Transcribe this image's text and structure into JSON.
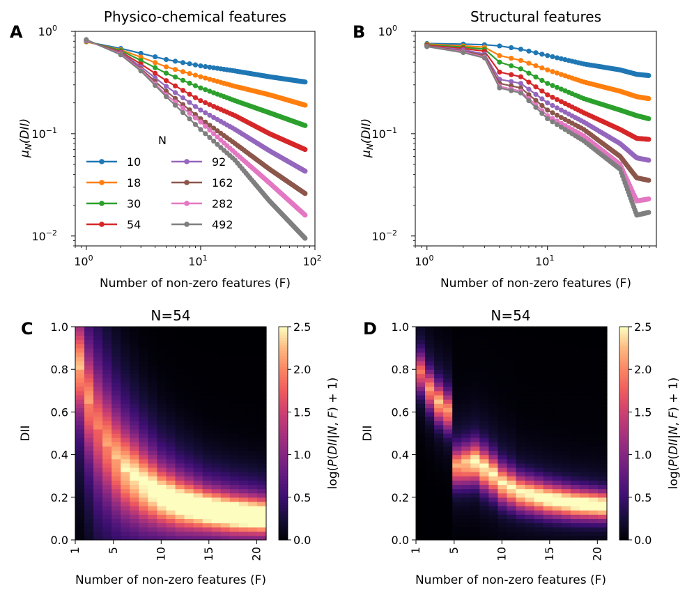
{
  "chart_data": [
    {
      "panel": "A",
      "type": "line",
      "title": "Physico-chemical features",
      "xlabel": "Number of non-zero features (F)",
      "ylabel": "μN(DII)",
      "xscale": "log",
      "yscale": "log",
      "xlim": [
        0.8,
        100
      ],
      "ylim": [
        0.008,
        1.0
      ],
      "xticks": [
        {
          "value": 1,
          "label": "10",
          "exp": "0"
        },
        {
          "value": 10,
          "label": "10",
          "exp": "1"
        },
        {
          "value": 100,
          "label": "10",
          "exp": "2"
        }
      ],
      "yticks": [
        {
          "value": 0.01,
          "label": "10",
          "exp": "−2"
        },
        {
          "value": 0.1,
          "label": "10",
          "exp": "−1"
        },
        {
          "value": 1,
          "label": "10",
          "exp": "0"
        }
      ],
      "legend": {
        "title": "N",
        "location": "lower-left"
      },
      "x_max": 82,
      "series": [
        {
          "name": "10",
          "color": "#1f77b4",
          "knots": [
            [
              1,
              0.79
            ],
            [
              2,
              0.68
            ],
            [
              3,
              0.61
            ],
            [
              5,
              0.53
            ],
            [
              10,
              0.46
            ],
            [
              20,
              0.41
            ],
            [
              40,
              0.36
            ],
            [
              82,
              0.32
            ]
          ]
        },
        {
          "name": "18",
          "color": "#ff7f0e",
          "knots": [
            [
              1,
              0.79
            ],
            [
              2,
              0.66
            ],
            [
              3,
              0.56
            ],
            [
              5,
              0.45
            ],
            [
              10,
              0.36
            ],
            [
              20,
              0.29
            ],
            [
              40,
              0.24
            ],
            [
              82,
              0.19
            ]
          ]
        },
        {
          "name": "30",
          "color": "#2ca02c",
          "knots": [
            [
              1,
              0.8
            ],
            [
              2,
              0.65
            ],
            [
              3,
              0.52
            ],
            [
              5,
              0.39
            ],
            [
              10,
              0.28
            ],
            [
              20,
              0.21
            ],
            [
              40,
              0.16
            ],
            [
              82,
              0.12
            ]
          ]
        },
        {
          "name": "54",
          "color": "#d62728",
          "knots": [
            [
              1,
              0.81
            ],
            [
              2,
              0.63
            ],
            [
              3,
              0.48
            ],
            [
              5,
              0.33
            ],
            [
              10,
              0.21
            ],
            [
              20,
              0.15
            ],
            [
              40,
              0.1
            ],
            [
              82,
              0.07
            ]
          ]
        },
        {
          "name": "92",
          "color": "#9467bd",
          "knots": [
            [
              1,
              0.81
            ],
            [
              2,
              0.62
            ],
            [
              3,
              0.45
            ],
            [
              5,
              0.29
            ],
            [
              10,
              0.17
            ],
            [
              20,
              0.11
            ],
            [
              40,
              0.068
            ],
            [
              82,
              0.043
            ]
          ]
        },
        {
          "name": "162",
          "color": "#8c564b",
          "knots": [
            [
              1,
              0.82
            ],
            [
              2,
              0.61
            ],
            [
              3,
              0.43
            ],
            [
              5,
              0.26
            ],
            [
              10,
              0.14
            ],
            [
              20,
              0.08
            ],
            [
              40,
              0.045
            ],
            [
              82,
              0.026
            ]
          ]
        },
        {
          "name": "282",
          "color": "#e377c2",
          "knots": [
            [
              1,
              0.82
            ],
            [
              2,
              0.6
            ],
            [
              3,
              0.42
            ],
            [
              5,
              0.24
            ],
            [
              10,
              0.13
            ],
            [
              20,
              0.065
            ],
            [
              40,
              0.033
            ],
            [
              82,
              0.016
            ]
          ]
        },
        {
          "name": "492",
          "color": "#7f7f7f",
          "knots": [
            [
              1,
              0.83
            ],
            [
              2,
              0.59
            ],
            [
              3,
              0.41
            ],
            [
              5,
              0.23
            ],
            [
              10,
              0.11
            ],
            [
              20,
              0.055
            ],
            [
              40,
              0.022
            ],
            [
              82,
              0.0095
            ]
          ]
        }
      ]
    },
    {
      "panel": "B",
      "type": "line",
      "title": "Structural features",
      "xlabel": "Number of non-zero features (F)",
      "ylabel": "μN(DII)",
      "xscale": "log",
      "yscale": "log",
      "xlim": [
        0.8,
        80
      ],
      "ylim": [
        0.008,
        1.0
      ],
      "xticks": [
        {
          "value": 1,
          "label": "10",
          "exp": "0"
        },
        {
          "value": 10,
          "label": "10",
          "exp": "1"
        }
      ],
      "yticks": [
        {
          "value": 0.01,
          "label": "10",
          "exp": "−2"
        },
        {
          "value": 0.1,
          "label": "10",
          "exp": "−1"
        },
        {
          "value": 1,
          "label": "10",
          "exp": "0"
        }
      ],
      "x_max": 69,
      "series": [
        {
          "name": "10",
          "color": "#1f77b4",
          "knots": [
            [
              1,
              0.76
            ],
            [
              2,
              0.75
            ],
            [
              3,
              0.74
            ],
            [
              4,
              0.72
            ],
            [
              6,
              0.67
            ],
            [
              10,
              0.58
            ],
            [
              20,
              0.48
            ],
            [
              40,
              0.42
            ],
            [
              55,
              0.38
            ],
            [
              69,
              0.37
            ]
          ]
        },
        {
          "name": "18",
          "color": "#ff7f0e",
          "knots": [
            [
              1,
              0.75
            ],
            [
              2,
              0.72
            ],
            [
              3,
              0.7
            ],
            [
              4,
              0.58
            ],
            [
              6,
              0.52
            ],
            [
              10,
              0.42
            ],
            [
              20,
              0.32
            ],
            [
              40,
              0.26
            ],
            [
              55,
              0.23
            ],
            [
              69,
              0.22
            ]
          ]
        },
        {
          "name": "30",
          "color": "#2ca02c",
          "knots": [
            [
              1,
              0.74
            ],
            [
              2,
              0.7
            ],
            [
              3,
              0.67
            ],
            [
              4,
              0.5
            ],
            [
              6,
              0.43
            ],
            [
              10,
              0.31
            ],
            [
              20,
              0.22
            ],
            [
              40,
              0.17
            ],
            [
              55,
              0.15
            ],
            [
              69,
              0.14
            ]
          ]
        },
        {
          "name": "54",
          "color": "#d62728",
          "knots": [
            [
              1,
              0.73
            ],
            [
              2,
              0.68
            ],
            [
              3,
              0.64
            ],
            [
              4,
              0.4
            ],
            [
              6,
              0.36
            ],
            [
              10,
              0.24
            ],
            [
              20,
              0.16
            ],
            [
              40,
              0.11
            ],
            [
              55,
              0.09
            ],
            [
              69,
              0.088
            ]
          ]
        },
        {
          "name": "92",
          "color": "#9467bd",
          "knots": [
            [
              1,
              0.72
            ],
            [
              2,
              0.66
            ],
            [
              3,
              0.6
            ],
            [
              4,
              0.34
            ],
            [
              6,
              0.31
            ],
            [
              10,
              0.2
            ],
            [
              20,
              0.13
            ],
            [
              40,
              0.08
            ],
            [
              55,
              0.058
            ],
            [
              69,
              0.055
            ]
          ]
        },
        {
          "name": "162",
          "color": "#8c564b",
          "knots": [
            [
              1,
              0.72
            ],
            [
              2,
              0.64
            ],
            [
              3,
              0.58
            ],
            [
              4,
              0.31
            ],
            [
              6,
              0.28
            ],
            [
              10,
              0.17
            ],
            [
              20,
              0.11
            ],
            [
              40,
              0.06
            ],
            [
              55,
              0.037
            ],
            [
              69,
              0.035
            ]
          ]
        },
        {
          "name": "282",
          "color": "#e377c2",
          "knots": [
            [
              1,
              0.71
            ],
            [
              2,
              0.63
            ],
            [
              3,
              0.56
            ],
            [
              4,
              0.29
            ],
            [
              6,
              0.26
            ],
            [
              10,
              0.15
            ],
            [
              20,
              0.095
            ],
            [
              40,
              0.05
            ],
            [
              55,
              0.022
            ],
            [
              69,
              0.023
            ]
          ]
        },
        {
          "name": "492",
          "color": "#7f7f7f",
          "knots": [
            [
              1,
              0.71
            ],
            [
              2,
              0.62
            ],
            [
              3,
              0.55
            ],
            [
              4,
              0.28
            ],
            [
              6,
              0.25
            ],
            [
              10,
              0.14
            ],
            [
              20,
              0.085
            ],
            [
              40,
              0.045
            ],
            [
              55,
              0.016
            ],
            [
              69,
              0.017
            ]
          ]
        }
      ]
    },
    {
      "panel": "C",
      "type": "heatmap",
      "title": "N=54",
      "xlabel": "Number of non-zero features (F)",
      "ylabel": "DII",
      "xlim": [
        1,
        21
      ],
      "ylim": [
        0.0,
        1.0
      ],
      "xticks": [
        {
          "value": 1,
          "label": "1"
        },
        {
          "value": 5,
          "label": "5"
        },
        {
          "value": 10,
          "label": "10"
        },
        {
          "value": 15,
          "label": "15"
        },
        {
          "value": 20,
          "label": "20"
        }
      ],
      "yticks": [
        {
          "value": 0.0,
          "label": "0.0"
        },
        {
          "value": 0.2,
          "label": "0.2"
        },
        {
          "value": 0.4,
          "label": "0.4"
        },
        {
          "value": 0.6,
          "label": "0.6"
        },
        {
          "value": 0.8,
          "label": "0.8"
        },
        {
          "value": 1.0,
          "label": "1.0"
        }
      ],
      "colorbar": {
        "label": "log(P(DII|N, F) + 1)",
        "min": 0.0,
        "max": 2.5,
        "ticks": [
          "0.0",
          "0.5",
          "1.0",
          "1.5",
          "2.0",
          "2.5"
        ]
      },
      "ridge": [
        [
          1,
          0.8
        ],
        [
          2,
          0.64
        ],
        [
          3,
          0.52
        ],
        [
          4,
          0.44
        ],
        [
          5,
          0.37
        ],
        [
          6,
          0.32
        ],
        [
          8,
          0.25
        ],
        [
          10,
          0.2
        ],
        [
          12,
          0.17
        ],
        [
          15,
          0.14
        ],
        [
          18,
          0.12
        ],
        [
          21,
          0.11
        ]
      ],
      "width": [
        [
          1,
          0.14
        ],
        [
          3,
          0.16
        ],
        [
          6,
          0.13
        ],
        [
          10,
          0.09
        ],
        [
          15,
          0.065
        ],
        [
          21,
          0.055
        ]
      ],
      "peak": [
        [
          1,
          1.3
        ],
        [
          3,
          1.0
        ],
        [
          6,
          1.5
        ],
        [
          10,
          1.9
        ],
        [
          15,
          2.3
        ],
        [
          21,
          2.45
        ]
      ],
      "halo_scale": 0.85,
      "halo_amp": 0.9
    },
    {
      "panel": "D",
      "type": "heatmap",
      "title": "N=54",
      "xlabel": "Number of non-zero features (F)",
      "ylabel": "DII",
      "xlim": [
        1,
        21
      ],
      "ylim": [
        0.0,
        1.0
      ],
      "xticks": [
        {
          "value": 1,
          "label": "1"
        },
        {
          "value": 5,
          "label": "5"
        },
        {
          "value": 10,
          "label": "10"
        },
        {
          "value": 15,
          "label": "15"
        },
        {
          "value": 20,
          "label": "20"
        }
      ],
      "yticks": [
        {
          "value": 0.0,
          "label": "0.0"
        },
        {
          "value": 0.2,
          "label": "0.2"
        },
        {
          "value": 0.4,
          "label": "0.4"
        },
        {
          "value": 0.6,
          "label": "0.6"
        },
        {
          "value": 0.8,
          "label": "0.8"
        },
        {
          "value": 1.0,
          "label": "1.0"
        }
      ],
      "colorbar": {
        "label": "log(P(DII|N, F) + 1)",
        "min": 0.0,
        "max": 2.5,
        "ticks": [
          "0.0",
          "0.5",
          "1.0",
          "1.5",
          "2.0",
          "2.5"
        ]
      },
      "ridge": [
        [
          1,
          0.78
        ],
        [
          2,
          0.7
        ],
        [
          3,
          0.64
        ],
        [
          4,
          0.6
        ],
        [
          4.9,
          0.34
        ],
        [
          6,
          0.35
        ],
        [
          7,
          0.36
        ],
        [
          8,
          0.33
        ],
        [
          9,
          0.3
        ],
        [
          10,
          0.26
        ],
        [
          12,
          0.22
        ],
        [
          15,
          0.19
        ],
        [
          18,
          0.17
        ],
        [
          21,
          0.16
        ]
      ],
      "width": [
        [
          1,
          0.06
        ],
        [
          4,
          0.06
        ],
        [
          5,
          0.06
        ],
        [
          8,
          0.065
        ],
        [
          12,
          0.055
        ],
        [
          21,
          0.045
        ]
      ],
      "peak": [
        [
          1,
          1.4
        ],
        [
          3,
          1.8
        ],
        [
          4,
          1.6
        ],
        [
          5,
          1.7
        ],
        [
          7,
          2.1
        ],
        [
          10,
          2.0
        ],
        [
          15,
          2.3
        ],
        [
          21,
          2.4
        ]
      ],
      "halo_scale": 0.6,
      "halo_amp": 0.5
    }
  ],
  "panel_labels": [
    "A",
    "B",
    "C",
    "D"
  ]
}
